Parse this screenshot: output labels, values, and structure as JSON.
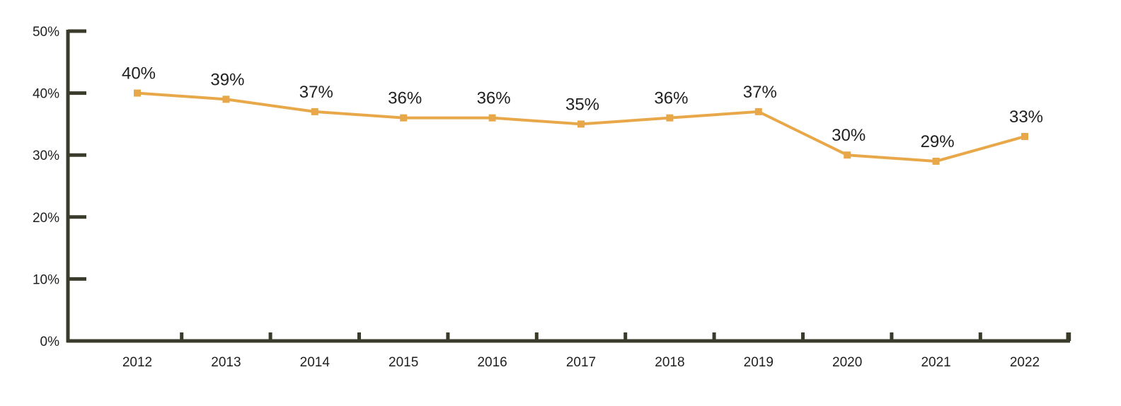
{
  "chart_data": {
    "type": "line",
    "x": [
      "2012",
      "2013",
      "2014",
      "2015",
      "2016",
      "2017",
      "2018",
      "2019",
      "2020",
      "2021",
      "2022"
    ],
    "series": [
      {
        "values": [
          40,
          39,
          37,
          36,
          36,
          35,
          36,
          37,
          30,
          29,
          33
        ],
        "color": "#e8a84a"
      }
    ],
    "data_labels": [
      "40%",
      "39%",
      "37%",
      "36%",
      "36%",
      "35%",
      "36%",
      "37%",
      "30%",
      "29%",
      "33%"
    ],
    "y_ticks": [
      0,
      10,
      20,
      30,
      40,
      50
    ],
    "y_tick_labels": [
      "0%",
      "10%",
      "20%",
      "30%",
      "40%",
      "50%"
    ],
    "ylim": [
      0,
      50
    ],
    "grid": false,
    "axis_color": "#3b3b2c"
  }
}
